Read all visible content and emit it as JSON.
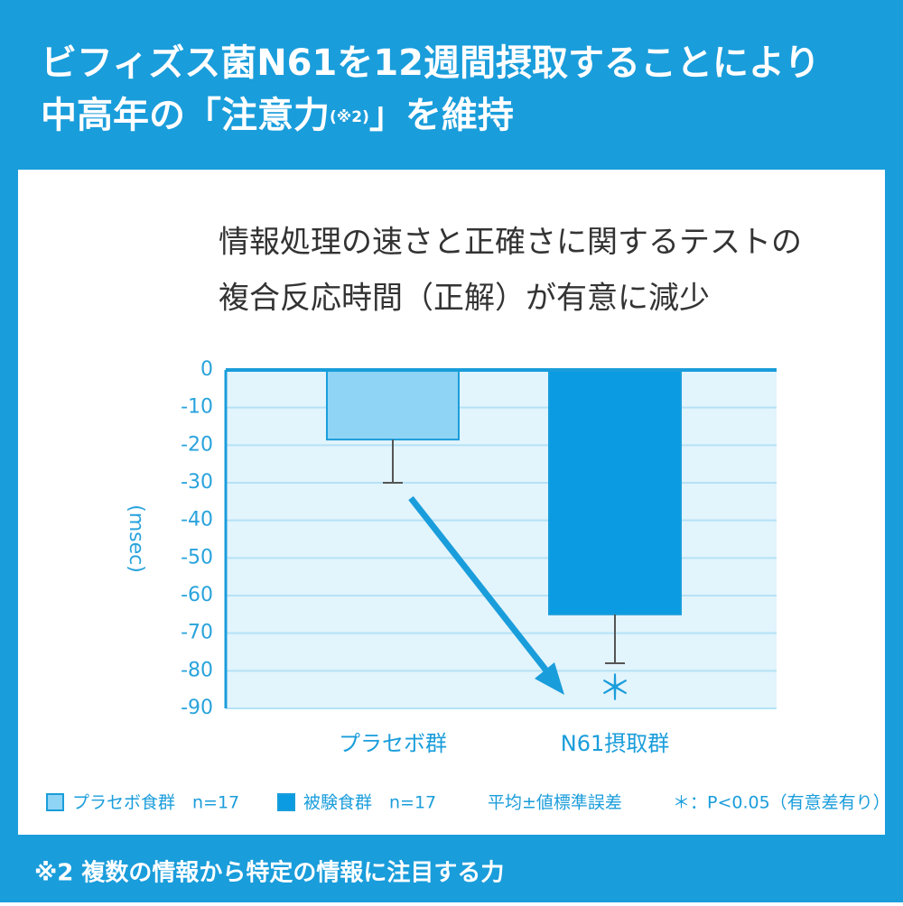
{
  "header": {
    "line1": "ビフィズス菌N61を12週間摂取することにより",
    "line2_start": "中高年の「注意力",
    "line2_note": "(※2)",
    "line2_end": "」を維持"
  },
  "chart_data": {
    "type": "bar",
    "title_lines": [
      "情報処理の速さと正確さに関するテストの",
      "複合反応時間（正解）が有意に減少"
    ],
    "y_label": "(msec)",
    "categories": [
      "プラセボ群",
      "N61摂取群"
    ],
    "values": [
      -18.5,
      -65
    ],
    "errors": [
      11.5,
      13
    ],
    "colors": [
      "#8fd4f5",
      "#0a9be2"
    ],
    "ylim": [
      -90,
      0
    ],
    "yticks": [
      0,
      -10,
      -20,
      -30,
      -40,
      -50,
      -60,
      -70,
      -80,
      -90
    ],
    "grid": true,
    "annotation": "＊",
    "legend": [
      "プラセボ食群　n=17",
      "被験食群　n=17",
      "平均±値標準誤差",
      "＊：P<0.05（有意差有り）"
    ]
  },
  "footnote": "※2 複数の情報から特定の情報に注目する力"
}
